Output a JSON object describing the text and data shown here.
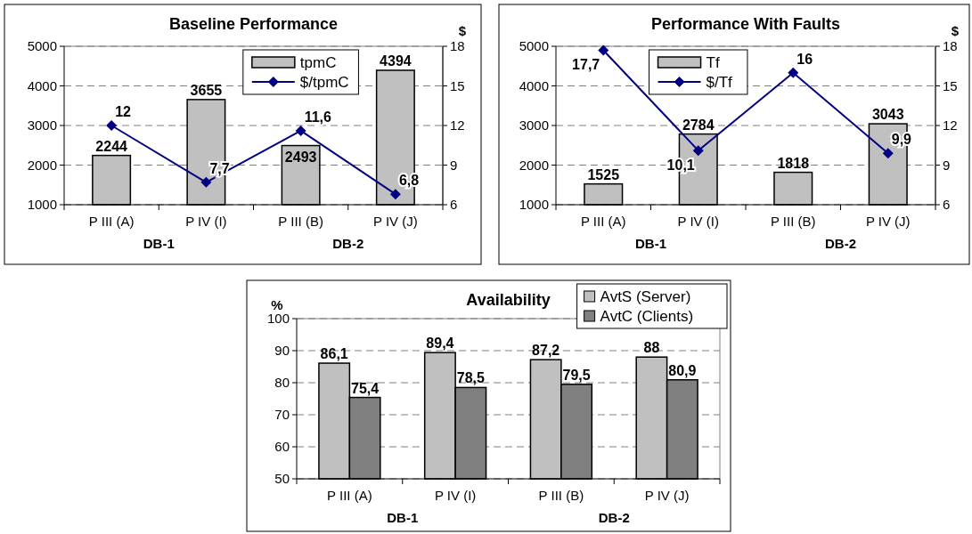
{
  "chart_data": [
    {
      "type": "bar",
      "title": "Baseline Performance",
      "y2label": "$",
      "categories": [
        "P III (A)",
        "P IV (I)",
        "P III (B)",
        "P IV (J)"
      ],
      "series": [
        {
          "name": "tpmC",
          "type": "bar",
          "color": "#c0c0c0",
          "values": [
            2244,
            3655,
            2493,
            4394
          ],
          "value_labels": [
            "2244",
            "3655",
            "2493",
            "4394"
          ]
        },
        {
          "name": "$/tpmC",
          "type": "line",
          "axis": "y2",
          "color": "#000080",
          "values": [
            12,
            7.7,
            11.6,
            6.8
          ],
          "value_labels": [
            "12",
            "7,7",
            "11,6",
            "6,8"
          ]
        }
      ],
      "ylim": [
        1000,
        5000
      ],
      "yticks": [
        1000,
        2000,
        3000,
        4000,
        5000
      ],
      "y2lim": [
        6,
        18
      ],
      "y2ticks": [
        6,
        9,
        12,
        15,
        18
      ],
      "grid": "y",
      "legend": "top",
      "marker": "diamond",
      "annotations": [
        "DB-1",
        "DB-2"
      ]
    },
    {
      "type": "bar",
      "title": "Performance With Faults",
      "y2label": "$",
      "categories": [
        "P III (A)",
        "P IV (I)",
        "P III (B)",
        "P IV (J)"
      ],
      "series": [
        {
          "name": "Tf",
          "type": "bar",
          "color": "#c0c0c0",
          "values": [
            1525,
            2784,
            1818,
            3043
          ],
          "value_labels": [
            "1525",
            "2784",
            "1818",
            "3043"
          ]
        },
        {
          "name": "$/Tf",
          "type": "line",
          "axis": "y2",
          "color": "#000080",
          "values": [
            17.7,
            10.1,
            16,
            9.9
          ],
          "value_labels": [
            "17,7",
            "10,1",
            "16",
            "9,9"
          ]
        }
      ],
      "ylim": [
        1000,
        5000
      ],
      "yticks": [
        1000,
        2000,
        3000,
        4000,
        5000
      ],
      "y2lim": [
        6,
        18
      ],
      "y2ticks": [
        6,
        9,
        12,
        15,
        18
      ],
      "grid": "y",
      "legend": "top",
      "marker": "diamond",
      "annotations": [
        "DB-1",
        "DB-2"
      ]
    },
    {
      "type": "bar",
      "title": "Availability",
      "ylabel": "%",
      "categories": [
        "P III (A)",
        "P IV (I)",
        "P III (B)",
        "P IV (J)"
      ],
      "series": [
        {
          "name": "AvtS (Server)",
          "color": "#c0c0c0",
          "values": [
            86.1,
            89.4,
            87.2,
            88
          ],
          "value_labels": [
            "86,1",
            "89,4",
            "87,2",
            "88"
          ]
        },
        {
          "name": "AvtC (Clients)",
          "color": "#808080",
          "values": [
            75.4,
            78.5,
            79.5,
            80.9
          ],
          "value_labels": [
            "75,4",
            "78,5",
            "79,5",
            "80,9"
          ]
        }
      ],
      "ylim": [
        50,
        100
      ],
      "yticks": [
        50,
        60,
        70,
        80,
        90,
        100
      ],
      "grid": "y",
      "legend": "top right",
      "annotations": [
        "DB-1",
        "DB-2"
      ]
    }
  ]
}
